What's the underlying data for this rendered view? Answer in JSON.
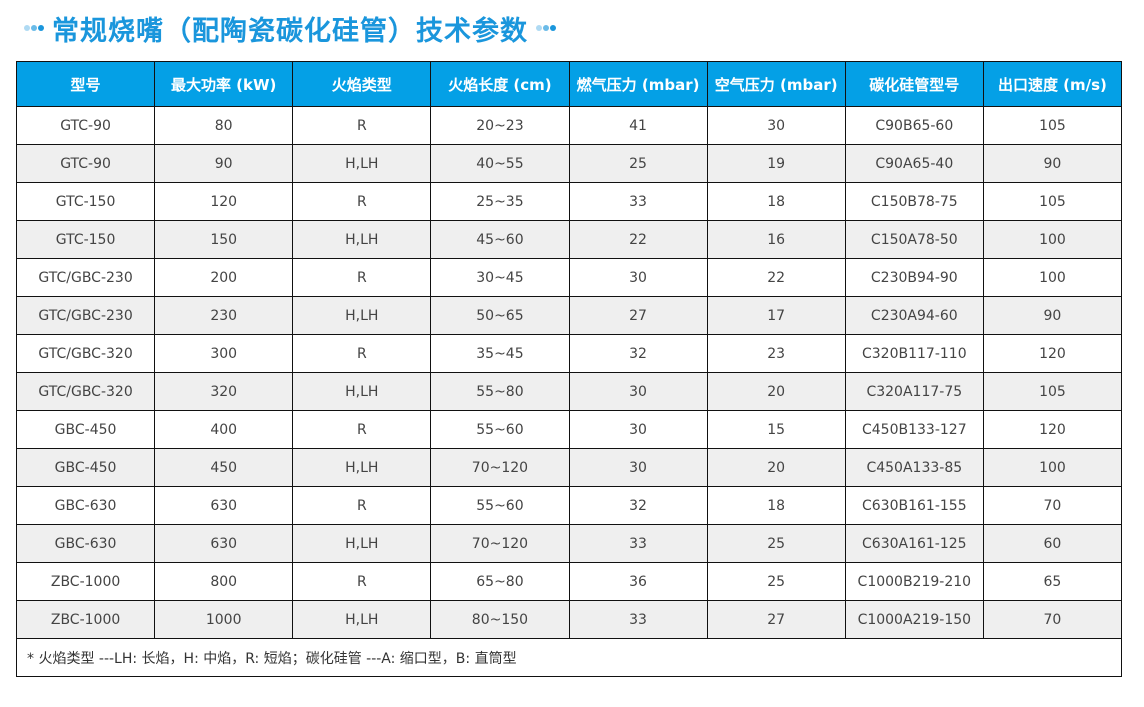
{
  "title": "常规烧嘴（配陶瓷碳化硅管）技术参数",
  "headers": [
    "型号",
    "最大功率 (kW)",
    "火焰类型",
    "火焰长度 (cm)",
    "燃气压力 (mbar)",
    "空气压力 (mbar)",
    "碳化硅管型号",
    "出口速度 (m/s)"
  ],
  "rows": [
    [
      "GTC-90",
      "80",
      "R",
      "20~23",
      "41",
      "30",
      "C90B65-60",
      "105"
    ],
    [
      "GTC-90",
      "90",
      "H,LH",
      "40~55",
      "25",
      "19",
      "C90A65-40",
      "90"
    ],
    [
      "GTC-150",
      "120",
      "R",
      "25~35",
      "33",
      "18",
      "C150B78-75",
      "105"
    ],
    [
      "GTC-150",
      "150",
      "H,LH",
      "45~60",
      "22",
      "16",
      "C150A78-50",
      "100"
    ],
    [
      "GTC/GBC-230",
      "200",
      "R",
      "30~45",
      "30",
      "22",
      "C230B94-90",
      "100"
    ],
    [
      "GTC/GBC-230",
      "230",
      "H,LH",
      "50~65",
      "27",
      "17",
      "C230A94-60",
      "90"
    ],
    [
      "GTC/GBC-320",
      "300",
      "R",
      "35~45",
      "32",
      "23",
      "C320B117-110",
      "120"
    ],
    [
      "GTC/GBC-320",
      "320",
      "H,LH",
      "55~80",
      "30",
      "20",
      "C320A117-75",
      "105"
    ],
    [
      "GBC-450",
      "400",
      "R",
      "55~60",
      "30",
      "15",
      "C450B133-127",
      "120"
    ],
    [
      "GBC-450",
      "450",
      "H,LH",
      "70~120",
      "30",
      "20",
      "C450A133-85",
      "100"
    ],
    [
      "GBC-630",
      "630",
      "R",
      "55~60",
      "32",
      "18",
      "C630B161-155",
      "70"
    ],
    [
      "GBC-630",
      "630",
      "H,LH",
      "70~120",
      "33",
      "25",
      "C630A161-125",
      "60"
    ],
    [
      "ZBC-1000",
      "800",
      "R",
      "65~80",
      "36",
      "25",
      "C1000B219-210",
      "65"
    ],
    [
      "ZBC-1000",
      "1000",
      "H,LH",
      "80~150",
      "33",
      "27",
      "C1000A219-150",
      "70"
    ]
  ],
  "note": "* 火焰类型 ---LH: 长焰，H: 中焰，R: 短焰；碳化硅管 ---A: 缩口型，B: 直筒型",
  "colors": {
    "accent": "#1a96dc",
    "header_bg": "#04a0e6",
    "alt_row": "#efefef"
  }
}
